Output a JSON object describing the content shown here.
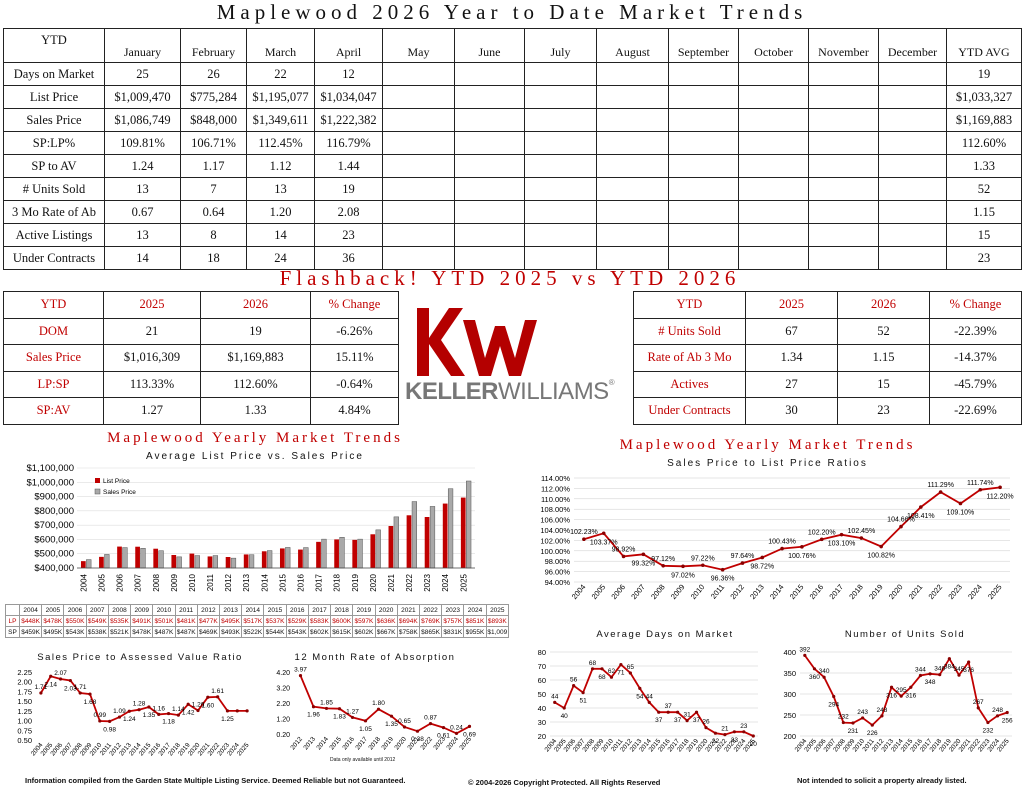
{
  "title": "Maplewood 2026 Year to Date Market Trends",
  "main_table": {
    "header": [
      "YTD",
      "January",
      "February",
      "March",
      "April",
      "May",
      "June",
      "July",
      "August",
      "September",
      "October",
      "November",
      "December",
      "YTD AVG"
    ],
    "rows": [
      [
        "Days on Market",
        "25",
        "26",
        "22",
        "12",
        "",
        "",
        "",
        "",
        "",
        "",
        "",
        "",
        "19"
      ],
      [
        "List Price",
        "$1,009,470",
        "$775,284",
        "$1,195,077",
        "$1,034,047",
        "",
        "",
        "",
        "",
        "",
        "",
        "",
        "",
        "$1,033,327"
      ],
      [
        "Sales Price",
        "$1,086,749",
        "$848,000",
        "$1,349,611",
        "$1,222,382",
        "",
        "",
        "",
        "",
        "",
        "",
        "",
        "",
        "$1,169,883"
      ],
      [
        "SP:LP%",
        "109.81%",
        "106.71%",
        "112.45%",
        "116.79%",
        "",
        "",
        "",
        "",
        "",
        "",
        "",
        "",
        "112.60%"
      ],
      [
        "SP to AV",
        "1.24",
        "1.17",
        "1.12",
        "1.44",
        "",
        "",
        "",
        "",
        "",
        "",
        "",
        "",
        "1.33"
      ],
      [
        "# Units Sold",
        "13",
        "7",
        "13",
        "19",
        "",
        "",
        "",
        "",
        "",
        "",
        "",
        "",
        "52"
      ],
      [
        "3 Mo Rate of Ab",
        "0.67",
        "0.64",
        "1.20",
        "2.08",
        "",
        "",
        "",
        "",
        "",
        "",
        "",
        "",
        "1.15"
      ],
      [
        "Active Listings",
        "13",
        "8",
        "14",
        "23",
        "",
        "",
        "",
        "",
        "",
        "",
        "",
        "",
        "15"
      ],
      [
        "Under Contracts",
        "14",
        "18",
        "24",
        "36",
        "",
        "",
        "",
        "",
        "",
        "",
        "",
        "",
        "23"
      ]
    ]
  },
  "flashback_title": "Flashback! YTD 2025 vs YTD 2026",
  "flashback_left": [
    [
      "YTD",
      "2025",
      "2026",
      "% Change"
    ],
    [
      "DOM",
      "21",
      "19",
      "-6.26%"
    ],
    [
      "Sales Price",
      "$1,016,309",
      "$1,169,883",
      "15.11%"
    ],
    [
      "LP:SP",
      "113.33%",
      "112.60%",
      "-0.64%"
    ],
    [
      "SP:AV",
      "1.27",
      "1.33",
      "4.84%"
    ]
  ],
  "flashback_right": [
    [
      "YTD",
      "2025",
      "2026",
      "% Change"
    ],
    [
      "# Units Sold",
      "67",
      "52",
      "-22.39%"
    ],
    [
      "Rate of Ab 3 Mo",
      "1.34",
      "1.15",
      "-14.37%"
    ],
    [
      "Actives",
      "27",
      "15",
      "-45.79%"
    ],
    [
      "Under Contracts",
      "30",
      "23",
      "-22.69%"
    ]
  ],
  "logo": {
    "mark": "kw",
    "word_bold": "KELLER",
    "word_light": "WILLIAMS",
    "reg": "®"
  },
  "colors": {
    "red": "#c00000",
    "gray": "#9e9e9e"
  },
  "chart_data": [
    {
      "type": "bar",
      "title": "Maplewood Yearly Market Trends",
      "subtitle": "Average List Price vs. Sales Price",
      "categories": [
        "2004",
        "2005",
        "2006",
        "2007",
        "2008",
        "2009",
        "2010",
        "2011",
        "2012",
        "2013",
        "2014",
        "2015",
        "2016",
        "2017",
        "2018",
        "2019",
        "2020",
        "2021",
        "2022",
        "2023",
        "2024",
        "2025"
      ],
      "series": [
        {
          "name": "List Price",
          "values": [
            448,
            478,
            550,
            549,
            535,
            491,
            501,
            481,
            477,
            495,
            517,
            537,
            529,
            583,
            600,
            597,
            636,
            694,
            769,
            757,
            851,
            893
          ]
        },
        {
          "name": "Sales Price",
          "values": [
            459,
            495,
            543,
            538,
            521,
            478,
            487,
            487,
            469,
            493,
            522,
            544,
            543,
            602,
            615,
            602,
            667,
            758,
            865,
            831,
            955,
            1009
          ]
        }
      ],
      "yticks": [
        "$400,000",
        "$500,000",
        "$600,000",
        "$700,000",
        "$800,000",
        "$900,000",
        "$1,000,000",
        "$1,100,000"
      ],
      "ylim": [
        400,
        1100
      ],
      "table_rows": {
        "years": [
          "2004",
          "2005",
          "2006",
          "2007",
          "2008",
          "2009",
          "2010",
          "2011",
          "2012",
          "2013",
          "2014",
          "2015",
          "2016",
          "2017",
          "2018",
          "2019",
          "2020",
          "2021",
          "2022",
          "2023",
          "2024",
          "2025"
        ],
        "lp": [
          "$448K",
          "$478K",
          "$550K",
          "$549K",
          "$535K",
          "$491K",
          "$501K",
          "$481K",
          "$477K",
          "$495K",
          "$517K",
          "$537K",
          "$529K",
          "$583K",
          "$600K",
          "$597K",
          "$636K",
          "$694K",
          "$769K",
          "$757K",
          "$851K",
          "$893K"
        ],
        "sp": [
          "$459K",
          "$495K",
          "$543K",
          "$538K",
          "$521K",
          "$478K",
          "$487K",
          "$487K",
          "$469K",
          "$493K",
          "$522K",
          "$544K",
          "$543K",
          "$602K",
          "$615K",
          "$602K",
          "$667K",
          "$758K",
          "$865K",
          "$831K",
          "$955K",
          "$1,009"
        ],
        "lp_label": "LP",
        "sp_label": "SP"
      }
    },
    {
      "type": "line",
      "title": "Maplewood Yearly Market Trends",
      "subtitle": "Sales Price to List Price Ratios",
      "x": [
        "2004",
        "2005",
        "2006",
        "2007",
        "2008",
        "2009",
        "2010",
        "2011",
        "2012",
        "2013",
        "2014",
        "2015",
        "2016",
        "2017",
        "2018",
        "2019",
        "2020",
        "2021",
        "2022",
        "2023",
        "2024",
        "2025"
      ],
      "values": [
        102.23,
        103.37,
        98.92,
        99.32,
        97.12,
        97.02,
        97.22,
        96.36,
        97.64,
        98.72,
        100.43,
        100.76,
        102.2,
        103.1,
        102.45,
        100.82,
        104.66,
        108.41,
        111.29,
        109.1,
        111.74,
        112.2
      ],
      "labels": [
        "102.23%",
        "103.37%",
        "98.92%",
        "99.32%",
        "97.12%",
        "97.02%",
        "97.22%",
        "96.36%",
        "97.64%",
        "98.72%",
        "100.43%",
        "100.76%",
        "102.20%",
        "103.10%",
        "102.45%",
        "100.82%",
        "104.66%",
        "108.41%",
        "111.29%",
        "109.10%",
        "111.74%",
        "112.20%"
      ],
      "yticks": [
        "94.00%",
        "96.00%",
        "98.00%",
        "100.00%",
        "102.00%",
        "104.00%",
        "106.00%",
        "108.00%",
        "110.00%",
        "112.00%",
        "114.00%"
      ],
      "ylim": [
        94,
        114
      ]
    },
    {
      "type": "line",
      "title": "Sales Price to Assessed Value Ratio",
      "x": [
        "2004",
        "2005",
        "2006",
        "2007",
        "2008",
        "2009",
        "2010",
        "2011",
        "2012",
        "2013",
        "2014",
        "2015",
        "2016",
        "2017",
        "2018",
        "2019",
        "2020",
        "2021",
        "2022",
        "2023",
        "2024",
        "2025"
      ],
      "values": [
        1.71,
        2.14,
        2.07,
        2.03,
        1.71,
        1.68,
        0.99,
        0.98,
        1.09,
        1.24,
        1.28,
        1.35,
        1.16,
        1.18,
        1.14,
        1.42,
        1.26,
        1.6,
        1.61,
        1.25,
        1.25,
        1.25
      ],
      "labels": [
        "1.71",
        "2.14",
        "2.07",
        "2.03",
        "1.71",
        "1.68",
        "0.99",
        "0.98",
        "1.09",
        "1.24",
        "1.28",
        "1.35",
        "1.16",
        "1.18",
        "1.14",
        "1.42",
        "1.26",
        "1.60",
        "1.61",
        "1.25",
        "",
        ""
      ],
      "yticks": [
        "0.50",
        "0.75",
        "1.00",
        "1.25",
        "1.50",
        "1.75",
        "2.00",
        "2.25"
      ],
      "ylim": [
        0.5,
        2.25
      ]
    },
    {
      "type": "line",
      "title": "12 Month Rate of Absorption",
      "x": [
        "2012",
        "2013",
        "2014",
        "2015",
        "2016",
        "2017",
        "2018",
        "2019",
        "2020",
        "2021",
        "2022",
        "2023",
        "2024",
        "2025"
      ],
      "values": [
        3.97,
        1.96,
        1.85,
        1.83,
        1.27,
        1.05,
        1.8,
        1.35,
        0.65,
        0.38,
        0.87,
        0.61,
        0.24,
        0.69
      ],
      "labels": [
        "3.97",
        "1.96",
        "1.85",
        "1.83",
        "1.27",
        "1.05",
        "1.80",
        "1.35",
        "0.65",
        "0.38",
        "0.87",
        "0.61",
        "0.24",
        "0.69"
      ],
      "yticks": [
        "0.20",
        "1.20",
        "2.20",
        "3.20",
        "4.20"
      ],
      "ylim": [
        0.2,
        4.2
      ],
      "note": "Data only available until 2012"
    },
    {
      "type": "line",
      "title": "Average Days on Market",
      "x": [
        "2004",
        "2005",
        "2006",
        "2007",
        "2008",
        "2009",
        "2010",
        "2011",
        "2012",
        "2013",
        "2014",
        "2015",
        "2016",
        "2017",
        "2018",
        "2019",
        "2020",
        "2021",
        "2022",
        "2023",
        "2024",
        "2025"
      ],
      "values": [
        44,
        40,
        56,
        51,
        68,
        68,
        62,
        71,
        65,
        54,
        44,
        37,
        37,
        37,
        31,
        37,
        26,
        22,
        21,
        23,
        23,
        20
      ],
      "labels": [
        "44",
        "40",
        "56",
        "51",
        "68",
        "68",
        "62",
        "71",
        "65",
        "54",
        "44",
        "37",
        "37",
        "37",
        "31",
        "37",
        "26",
        "22",
        "21",
        "23",
        "23",
        "20"
      ],
      "yticks": [
        "20",
        "30",
        "40",
        "50",
        "60",
        "70",
        "80"
      ],
      "ylim": [
        20,
        80
      ]
    },
    {
      "type": "line",
      "title": "Number of Units Sold",
      "x": [
        "2004",
        "2005",
        "2006",
        "2007",
        "2008",
        "2009",
        "2010",
        "2011",
        "2012",
        "2013",
        "2014",
        "2015",
        "2016",
        "2017",
        "2018",
        "2019",
        "2020",
        "2021",
        "2022",
        "2023",
        "2024",
        "2025"
      ],
      "values": [
        392,
        360,
        340,
        294,
        232,
        231,
        243,
        226,
        248,
        316,
        295,
        316,
        344,
        348,
        346,
        384,
        345,
        376,
        267,
        232,
        248,
        256
      ],
      "labels": [
        "392",
        "360",
        "340",
        "294",
        "232",
        "231",
        "243",
        "226",
        "248",
        "316",
        "295",
        "316",
        "344",
        "348",
        "346",
        "384",
        "345",
        "376",
        "267",
        "232",
        "248",
        "256"
      ],
      "yticks": [
        "200",
        "250",
        "300",
        "350",
        "400"
      ],
      "ylim": [
        200,
        400
      ]
    }
  ],
  "footer": {
    "left": "Information compiled from the Garden State Multiple Listing Service.  Deemed Reliable but not Guaranteed.",
    "center": "© 2004-2026 Copyright Protected.  All Rights Reserved",
    "right": "Not intended to solicit a property already listed."
  }
}
